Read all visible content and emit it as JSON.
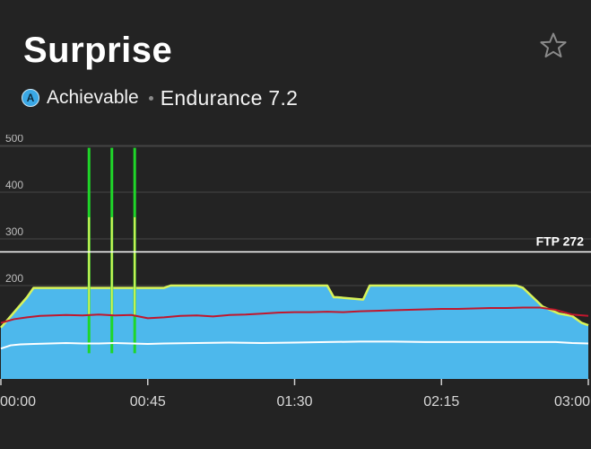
{
  "workout": {
    "title": "Surprise",
    "badge_letter": "A",
    "achievability": "Achievable",
    "zone_level": "Endurance 7.2",
    "favorite_icon": "star-outline-icon"
  },
  "colors": {
    "background": "#232323",
    "area": "#4db8ec",
    "target_line": "#d8f35a",
    "interval_spike": "#1fd629",
    "power_line": "#c0172d",
    "cadence_line": "#ffffff",
    "ftp_line": "#ffffff",
    "grid": "#444444"
  },
  "chart_data": {
    "type": "area",
    "x_unit": "time (h:mm)",
    "y_unit": "watts",
    "xlim": [
      0,
      180
    ],
    "ylim": [
      0,
      500
    ],
    "x_ticks": [
      0,
      45,
      90,
      135,
      180
    ],
    "x_tick_labels": [
      "00:00",
      "00:45",
      "01:30",
      "02:15",
      "03:00"
    ],
    "y_ticks": [
      200,
      300,
      400,
      500
    ],
    "y_tick_labels": [
      "200",
      "300",
      "400",
      "500"
    ],
    "ftp": 272,
    "ftp_label": "FTP 272",
    "grid": true,
    "target_power": {
      "x": [
        0,
        8,
        10,
        50,
        52,
        100,
        102,
        103,
        111,
        113,
        158,
        160,
        166,
        171,
        175,
        178,
        180
      ],
      "y": [
        110,
        175,
        195,
        195,
        200,
        200,
        175,
        175,
        170,
        200,
        200,
        195,
        155,
        140,
        135,
        120,
        115
      ]
    },
    "intervals": [
      {
        "x": 27,
        "low": 55,
        "high": 495
      },
      {
        "x": 34,
        "low": 55,
        "high": 495
      },
      {
        "x": 41,
        "low": 55,
        "high": 495
      }
    ],
    "power": {
      "x": [
        0,
        4,
        8,
        12,
        16,
        20,
        25,
        30,
        35,
        40,
        45,
        50,
        55,
        60,
        65,
        70,
        75,
        80,
        85,
        90,
        95,
        100,
        105,
        110,
        115,
        120,
        125,
        130,
        135,
        140,
        145,
        150,
        155,
        160,
        165,
        170,
        175,
        180
      ],
      "y": [
        120,
        128,
        132,
        135,
        136,
        137,
        136,
        138,
        136,
        137,
        130,
        132,
        135,
        136,
        134,
        137,
        138,
        140,
        142,
        143,
        143,
        144,
        143,
        145,
        146,
        147,
        148,
        149,
        150,
        150,
        151,
        152,
        152,
        153,
        153,
        148,
        138,
        135
      ]
    },
    "cadence": {
      "x": [
        0,
        3,
        6,
        10,
        15,
        20,
        25,
        30,
        35,
        40,
        45,
        50,
        60,
        70,
        80,
        90,
        100,
        110,
        120,
        130,
        140,
        150,
        160,
        170,
        175,
        180
      ],
      "y": [
        65,
        72,
        74,
        75,
        76,
        77,
        76,
        76,
        77,
        76,
        75,
        76,
        77,
        78,
        77,
        78,
        79,
        80,
        80,
        79,
        79,
        79,
        79,
        79,
        77,
        76
      ]
    }
  }
}
